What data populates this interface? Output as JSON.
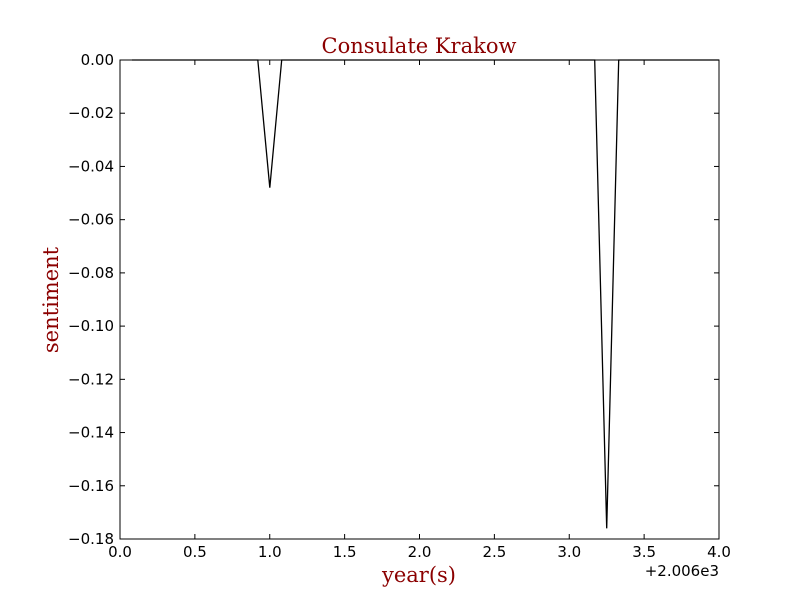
{
  "chart_data": {
    "type": "line",
    "title": "Consulate Krakow",
    "xlabel": "year(s)",
    "ylabel": "sentiment",
    "x_offset_label": "+2.006e3",
    "xlim": [
      0.0,
      4.0
    ],
    "ylim": [
      -0.18,
      0.0
    ],
    "xticks": [
      "0.0",
      "0.5",
      "1.0",
      "1.5",
      "2.0",
      "2.5",
      "3.0",
      "3.5",
      "4.0"
    ],
    "yticks": [
      "0.00",
      "−0.02",
      "−0.04",
      "−0.06",
      "−0.08",
      "−0.10",
      "−0.12",
      "−0.14",
      "−0.16",
      "−0.18"
    ],
    "grid": false,
    "series": [
      {
        "x": [
          0.08,
          0.92,
          1.0,
          1.08,
          3.17,
          3.25,
          3.33,
          4.0
        ],
        "y": [
          0.0,
          0.0,
          -0.048,
          0.0,
          0.0,
          -0.176,
          0.0,
          0.0
        ]
      }
    ],
    "colors": {
      "title": "#8b0000",
      "axis_label": "#8b0000",
      "line": "#000000"
    }
  }
}
